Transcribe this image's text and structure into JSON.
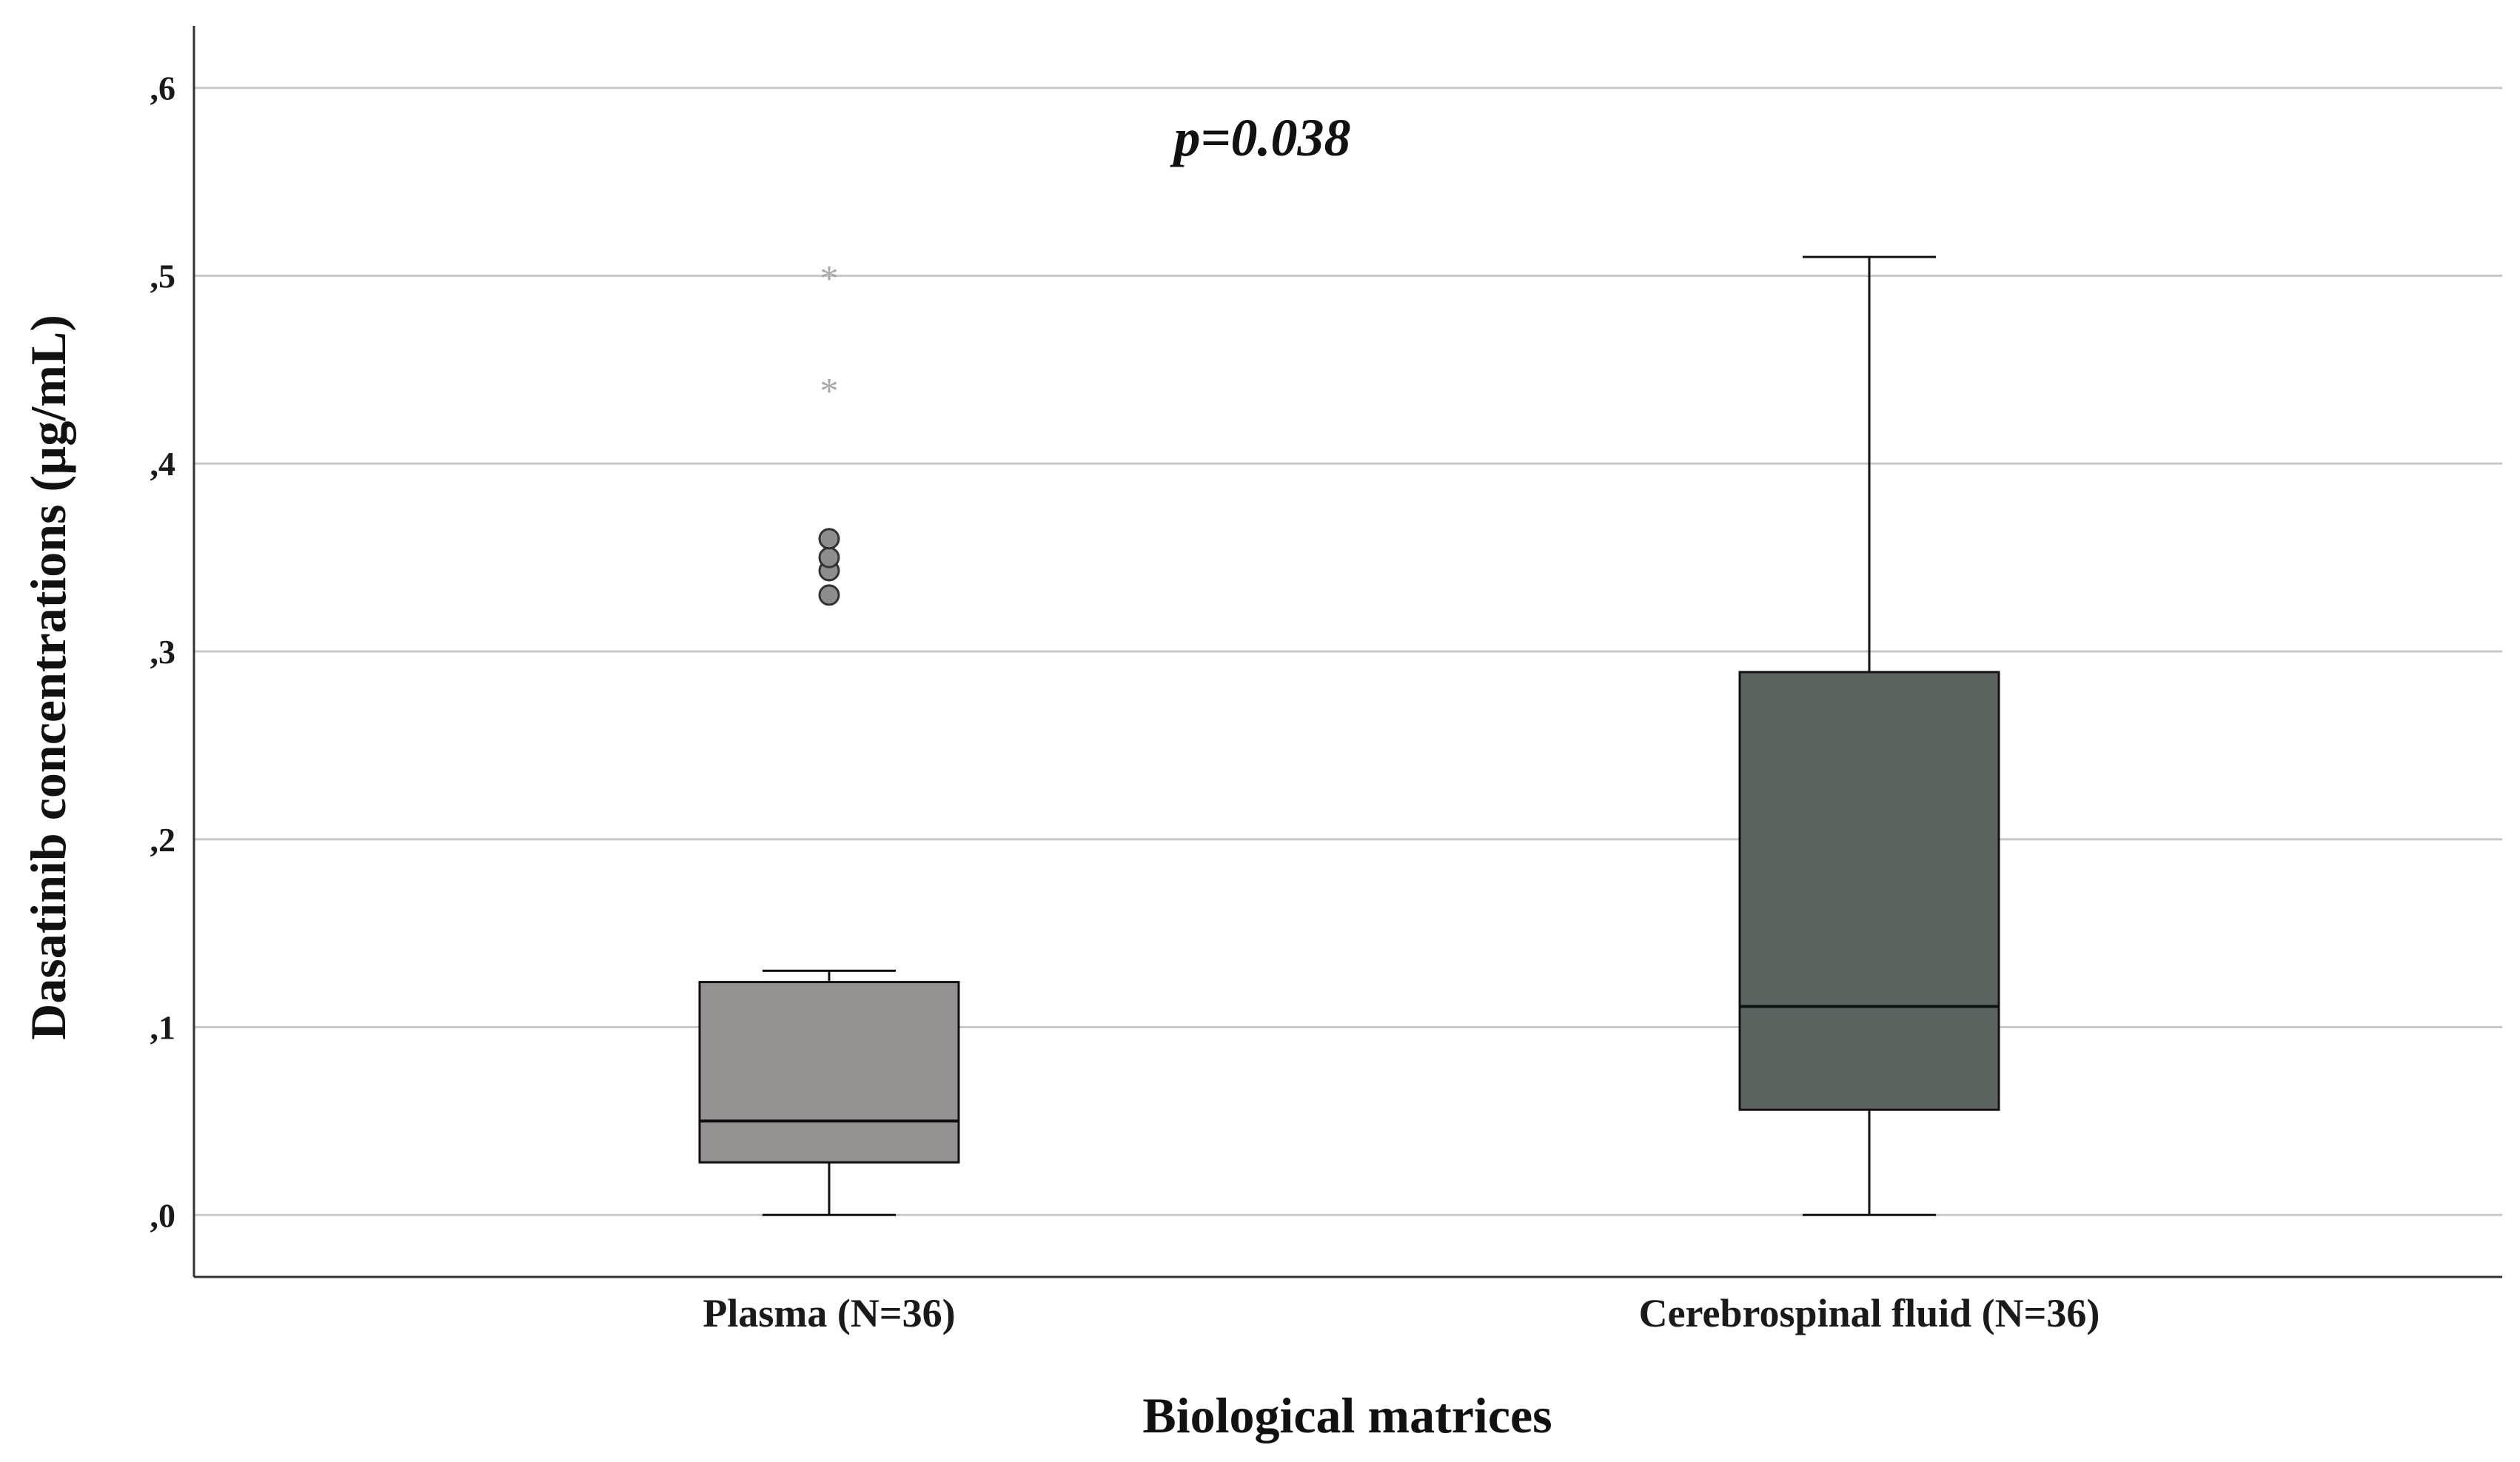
{
  "chart_data": {
    "type": "box",
    "xlabel": "Biological matrices",
    "ylabel": "Dasatinib concentrations (µg/mL)",
    "ylim": [
      -0.033,
      0.633
    ],
    "yticks": [
      0.0,
      0.1,
      0.2,
      0.3,
      0.4,
      0.5,
      0.6
    ],
    "ytick_labels": [
      ",0",
      ",1",
      ",2",
      ",3",
      ",4",
      ",5",
      ",6"
    ],
    "grid": "horizontal",
    "annotation": "p=0.038",
    "boxes": [
      {
        "category": "Plasma (N=36)",
        "color": "#959190",
        "whisker_low": 0.0,
        "q1": 0.028,
        "median": 0.05,
        "q3": 0.124,
        "whisker_high": 0.13,
        "outliers": [
          0.33,
          0.343,
          0.35,
          0.36
        ],
        "extremes": [
          0.44,
          0.5
        ]
      },
      {
        "category": "Cerebrospinal fluid (N=36)",
        "color": "#5b645e",
        "whisker_low": 0.0,
        "q1": 0.056,
        "median": 0.111,
        "q3": 0.289,
        "whisker_high": 0.51,
        "outliers": [],
        "extremes": []
      }
    ]
  }
}
